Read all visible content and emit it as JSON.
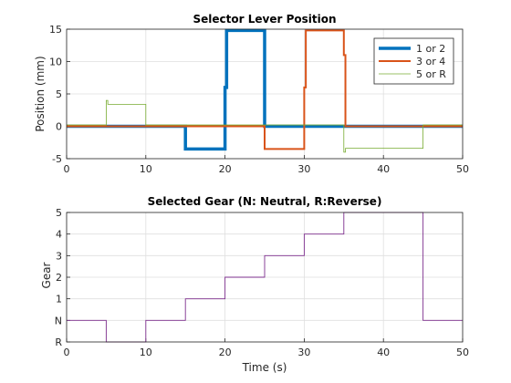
{
  "chart_data": [
    {
      "type": "line",
      "title": "Selector Lever Position",
      "xlabel": "",
      "ylabel": "Position (mm)",
      "xlim": [
        0,
        50
      ],
      "ylim": [
        -5,
        15
      ],
      "x_ticks": [
        "0",
        "10",
        "20",
        "30",
        "40",
        "50"
      ],
      "y_ticks": [
        "-5",
        "0",
        "5",
        "10",
        "15"
      ],
      "grid": true,
      "legend_position": "top-right",
      "series": [
        {
          "name": "1 or 2",
          "color": "#0072BD",
          "x": [
            0,
            15,
            15,
            20,
            20,
            20.2,
            20.2,
            25,
            25,
            50
          ],
          "y": [
            0,
            0,
            -3.5,
            -3.5,
            6,
            6,
            14.8,
            14.8,
            0,
            0
          ]
        },
        {
          "name": "3 or 4",
          "color": "#D95319",
          "x": [
            0,
            25,
            25,
            30,
            30,
            30.2,
            30.2,
            35,
            35,
            35.2,
            35.2,
            50
          ],
          "y": [
            0,
            0,
            -3.5,
            -3.5,
            6,
            6,
            14.8,
            14.8,
            11,
            11,
            0,
            0
          ]
        },
        {
          "name": "5 or R",
          "color": "#77AC30",
          "x": [
            0,
            5,
            5,
            5.2,
            5.2,
            10,
            10,
            35,
            35,
            35.2,
            35.2,
            45,
            45,
            50
          ],
          "y": [
            0.2,
            0.2,
            4,
            4,
            3.4,
            3.4,
            0.2,
            0.2,
            -4,
            -4,
            -3.4,
            -3.4,
            0.2,
            0.2
          ]
        }
      ]
    },
    {
      "type": "line",
      "title": "Selected Gear (N: Neutral, R:Reverse)",
      "xlabel": "Time (s)",
      "ylabel": "Gear",
      "xlim": [
        0,
        50
      ],
      "ylim": [
        -1,
        5
      ],
      "x_ticks": [
        "0",
        "10",
        "20",
        "30",
        "40",
        "50"
      ],
      "y_ticks": [
        {
          "value": -1,
          "label": "R"
        },
        {
          "value": 0,
          "label": "N"
        },
        {
          "value": 1,
          "label": "1"
        },
        {
          "value": 2,
          "label": "2"
        },
        {
          "value": 3,
          "label": "3"
        },
        {
          "value": 4,
          "label": "4"
        },
        {
          "value": 5,
          "label": "5"
        }
      ],
      "grid": true,
      "series": [
        {
          "color": "#7E2F8E",
          "x": [
            0,
            5,
            5,
            10,
            10,
            15,
            15,
            20,
            20,
            25,
            25,
            30,
            30,
            35,
            35,
            45,
            45,
            50
          ],
          "y": [
            0,
            0,
            -1,
            -1,
            0,
            0,
            1,
            1,
            2,
            2,
            3,
            3,
            4,
            4,
            5,
            5,
            0,
            0
          ]
        }
      ]
    }
  ]
}
